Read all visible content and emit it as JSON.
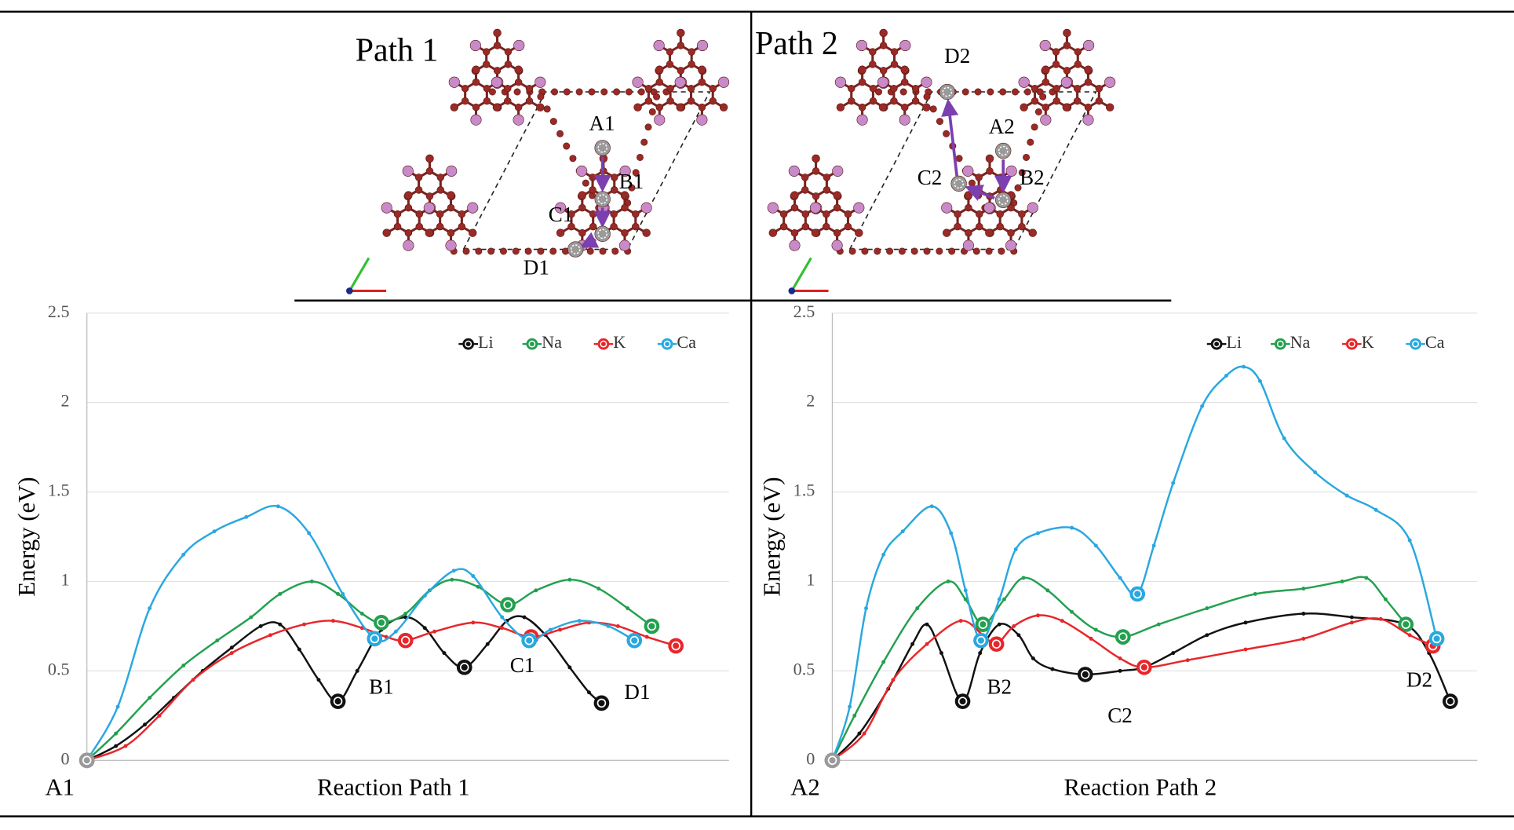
{
  "structures": [
    {
      "title": "Path 1",
      "sites": [
        "A1",
        "B1",
        "C1",
        "D1"
      ]
    },
    {
      "title": "Path 2",
      "sites": [
        "A2",
        "B2",
        "C2",
        "D2"
      ]
    }
  ],
  "chart_data": [
    {
      "type": "line",
      "x_label": "Reaction Path 1",
      "y_label": "Energy (eV)",
      "start_label": "A1",
      "xlim": [
        0,
        665
      ],
      "ylim": [
        0,
        2.5
      ],
      "yticks": [
        0,
        0.5,
        1,
        1.5,
        2,
        2.5
      ],
      "grid": true,
      "legend": "upper right",
      "series": [
        {
          "name": "Li",
          "color": "#111111",
          "states": [
            0,
            10,
            16,
            23
          ],
          "x": [
            0,
            30,
            60,
            90,
            120,
            150,
            180,
            200,
            220,
            240,
            260,
            280,
            305,
            330,
            350,
            370,
            391,
            415,
            435,
            453,
            475,
            500,
            520,
            533
          ],
          "values": [
            0,
            0.08,
            0.2,
            0.35,
            0.5,
            0.63,
            0.75,
            0.76,
            0.62,
            0.45,
            0.33,
            0.5,
            0.73,
            0.8,
            0.74,
            0.6,
            0.52,
            0.65,
            0.78,
            0.8,
            0.7,
            0.52,
            0.38,
            0.32
          ]
        },
        {
          "name": "Na",
          "color": "#23a04f",
          "states": [
            0,
            10,
            15,
            20
          ],
          "x": [
            0,
            30,
            65,
            100,
            135,
            170,
            200,
            233,
            260,
            285,
            305,
            330,
            355,
            378,
            405,
            436,
            465,
            500,
            530,
            560,
            585
          ],
          "values": [
            0,
            0.15,
            0.35,
            0.53,
            0.67,
            0.8,
            0.93,
            1.0,
            0.93,
            0.82,
            0.77,
            0.82,
            0.95,
            1.01,
            0.97,
            0.87,
            0.95,
            1.01,
            0.96,
            0.85,
            0.75
          ]
        },
        {
          "name": "K",
          "color": "#e8262a",
          "states": [
            0,
            10,
            14,
            19
          ],
          "x": [
            0,
            40,
            75,
            110,
            150,
            190,
            225,
            255,
            285,
            310,
            330,
            360,
            400,
            430,
            460,
            490,
            520,
            550,
            580,
            610
          ],
          "values": [
            0,
            0.08,
            0.25,
            0.45,
            0.6,
            0.7,
            0.76,
            0.78,
            0.74,
            0.69,
            0.67,
            0.72,
            0.77,
            0.74,
            0.69,
            0.73,
            0.77,
            0.75,
            0.69,
            0.64
          ]
        },
        {
          "name": "Ca",
          "color": "#29a8e0",
          "states": [
            0,
            9,
            15,
            19
          ],
          "x": [
            0,
            32,
            65,
            100,
            132,
            165,
            198,
            230,
            265,
            298,
            320,
            350,
            380,
            400,
            430,
            458,
            480,
            510,
            540,
            567
          ],
          "values": [
            0,
            0.3,
            0.85,
            1.15,
            1.28,
            1.36,
            1.42,
            1.27,
            0.93,
            0.68,
            0.72,
            0.92,
            1.06,
            1.03,
            0.8,
            0.67,
            0.73,
            0.78,
            0.75,
            0.67
          ]
        }
      ],
      "annotations": [
        {
          "text": "B1",
          "x": 305,
          "y": 0.4
        },
        {
          "text": "C1",
          "x": 451,
          "y": 0.52
        },
        {
          "text": "D1",
          "x": 570,
          "y": 0.37
        }
      ]
    },
    {
      "type": "line",
      "x_label": "Reaction Path 2",
      "y_label": "Energy (eV)",
      "start_label": "A2",
      "xlim": [
        0,
        668
      ],
      "ylim": [
        0,
        2.5
      ],
      "yticks": [
        0,
        0.5,
        1,
        1.5,
        2,
        2.5
      ],
      "grid": true,
      "legend": "upper right",
      "series": [
        {
          "name": "Li",
          "color": "#111111",
          "states": [
            0,
            6,
            12,
            22
          ],
          "x": [
            0,
            28,
            58,
            83,
            98,
            113,
            135,
            153,
            173,
            193,
            208,
            228,
            262,
            298,
            323,
            353,
            388,
            428,
            488,
            538,
            593,
            618,
            640
          ],
          "values": [
            0,
            0.15,
            0.4,
            0.65,
            0.76,
            0.6,
            0.33,
            0.6,
            0.76,
            0.7,
            0.57,
            0.51,
            0.48,
            0.5,
            0.52,
            0.6,
            0.7,
            0.77,
            0.82,
            0.8,
            0.76,
            0.6,
            0.33
          ]
        },
        {
          "name": "Na",
          "color": "#23a04f",
          "states": [
            0,
            6,
            12,
            20
          ],
          "x": [
            0,
            23,
            53,
            88,
            120,
            138,
            156,
            178,
            198,
            223,
            248,
            273,
            301,
            338,
            388,
            438,
            488,
            528,
            553,
            573,
            594
          ],
          "values": [
            0,
            0.25,
            0.55,
            0.85,
            1.0,
            0.9,
            0.76,
            0.9,
            1.02,
            0.95,
            0.83,
            0.73,
            0.69,
            0.76,
            0.85,
            0.93,
            0.96,
            1.0,
            1.02,
            0.9,
            0.76
          ]
        },
        {
          "name": "K",
          "color": "#e8262a",
          "states": [
            0,
            6,
            12,
            19
          ],
          "x": [
            0,
            33,
            63,
            98,
            133,
            156,
            170,
            188,
            213,
            238,
            268,
            298,
            323,
            368,
            428,
            488,
            538,
            568,
            598,
            622
          ],
          "values": [
            0,
            0.15,
            0.45,
            0.65,
            0.78,
            0.7,
            0.65,
            0.75,
            0.81,
            0.78,
            0.68,
            0.57,
            0.52,
            0.56,
            0.62,
            0.68,
            0.77,
            0.79,
            0.7,
            0.64
          ]
        },
        {
          "name": "Ca",
          "color": "#29a8e0",
          "states": [
            0,
            8,
            15,
            27
          ],
          "x": [
            0,
            18,
            35,
            53,
            73,
            103,
            123,
            138,
            154,
            173,
            190,
            213,
            248,
            273,
            298,
            316,
            333,
            353,
            383,
            408,
            426,
            443,
            468,
            500,
            533,
            563,
            598,
            626
          ],
          "values": [
            0,
            0.3,
            0.85,
            1.15,
            1.28,
            1.42,
            1.27,
            0.95,
            0.67,
            0.9,
            1.18,
            1.27,
            1.3,
            1.2,
            1.02,
            0.93,
            1.2,
            1.55,
            1.98,
            2.15,
            2.2,
            2.12,
            1.8,
            1.61,
            1.48,
            1.4,
            1.23,
            0.68
          ]
        }
      ],
      "annotations": [
        {
          "text": "B2",
          "x": 173,
          "y": 0.4
        },
        {
          "text": "C2",
          "x": 298,
          "y": 0.24
        },
        {
          "text": "D2",
          "x": 608,
          "y": 0.44
        }
      ]
    }
  ]
}
